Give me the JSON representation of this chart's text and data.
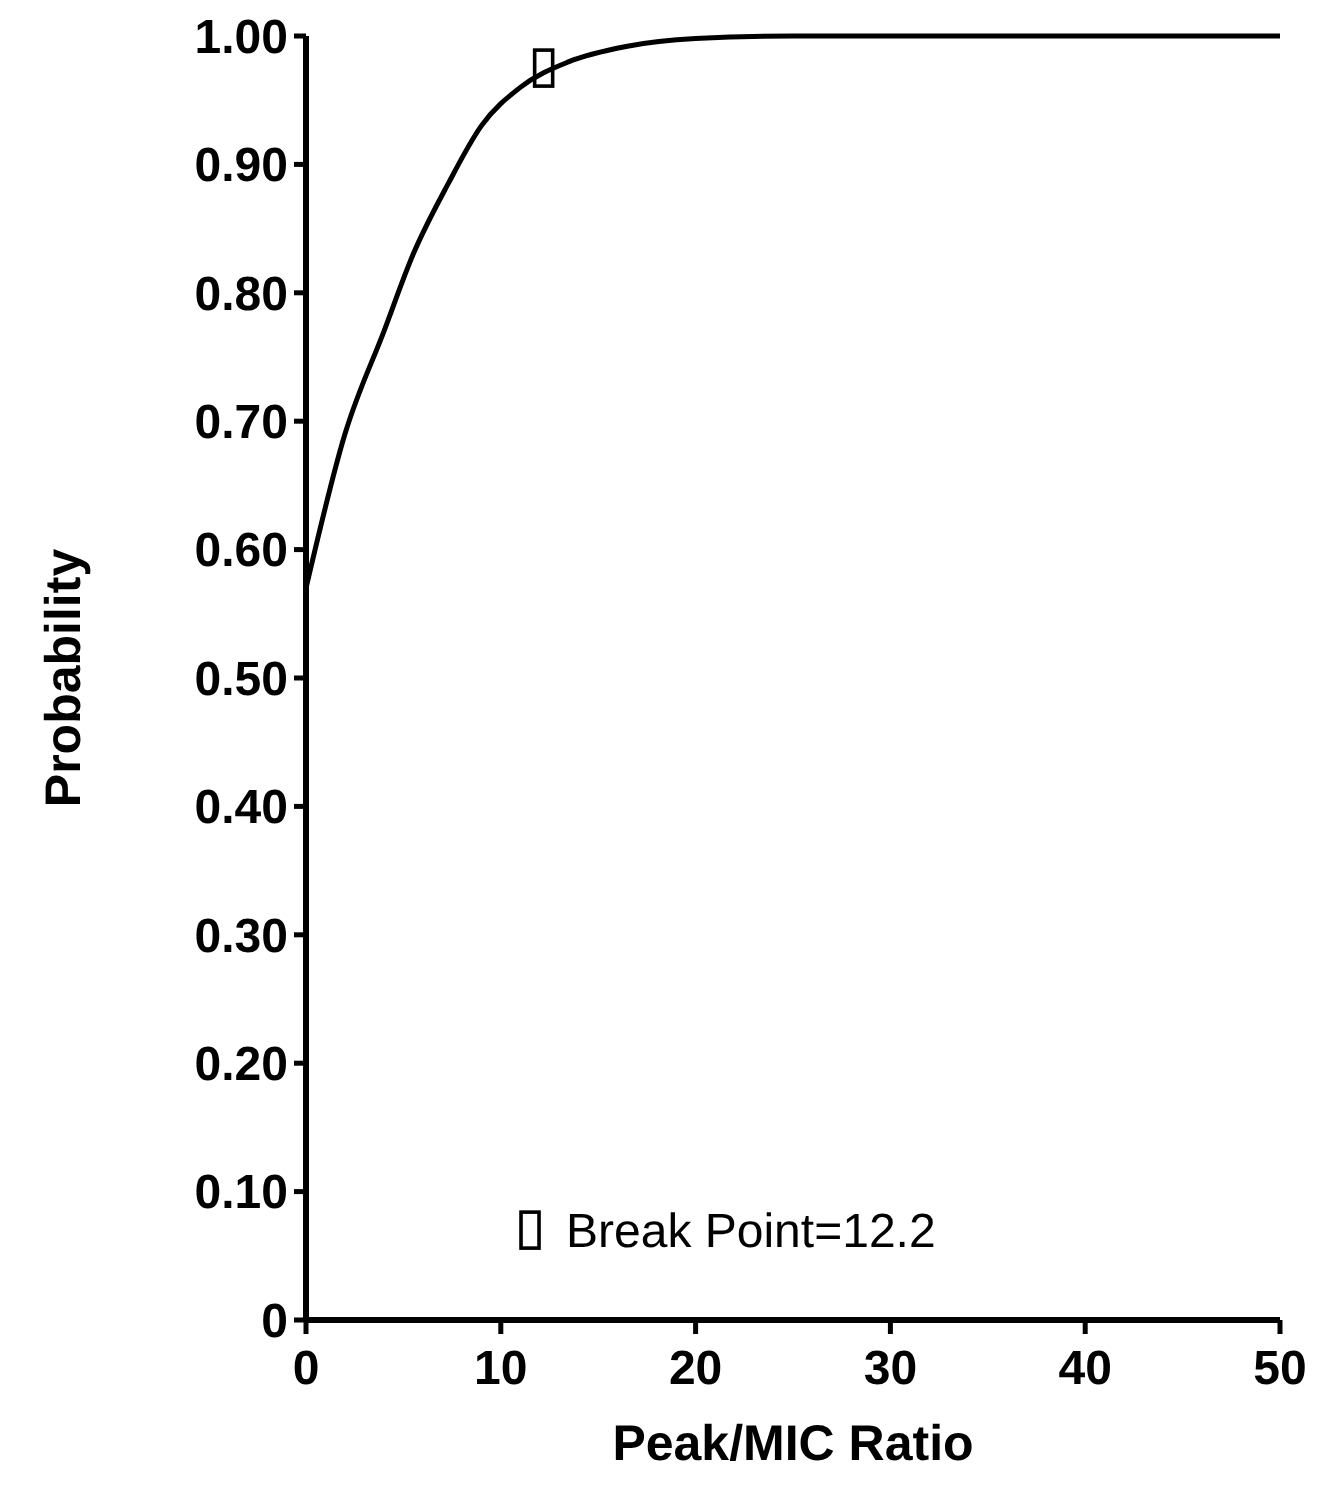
{
  "chart_data": {
    "type": "line",
    "xlabel": "Peak/MIC Ratio",
    "ylabel": "Probability",
    "xlim": [
      0,
      50
    ],
    "xticks": [
      0,
      10,
      20,
      30,
      40,
      50
    ],
    "ylim": [
      0,
      1
    ],
    "yticks": [
      0,
      {
        "value": 0.1,
        "label": "0.10"
      },
      {
        "value": 0.2,
        "label": "0.20"
      },
      {
        "value": 0.3,
        "label": "0.30"
      },
      {
        "value": 0.4,
        "label": "0.40"
      },
      {
        "value": 0.5,
        "label": "0.50"
      },
      {
        "value": 0.6,
        "label": "0.60"
      },
      {
        "value": 0.7,
        "label": "0.70"
      },
      {
        "value": 0.8,
        "label": "0.80"
      },
      {
        "value": 0.9,
        "label": "0.90"
      },
      {
        "value": 1,
        "label": "1.00"
      }
    ],
    "grid": false,
    "legend": "bottom",
    "series": [
      {
        "color": "#000000",
        "marker": "none",
        "x": [
          0,
          2,
          4,
          5.5,
          7.3,
          9,
          11,
          13.5,
          16.5,
          20,
          25,
          30,
          40,
          50
        ],
        "values": [
          0.57,
          0.69,
          0.77,
          0.83,
          0.885,
          0.93,
          0.96,
          0.98,
          0.992,
          0.998,
          1,
          1,
          1,
          1
        ]
      },
      {
        "type": "scatter",
        "name": "Break Point=12.2",
        "color": "#000000",
        "marker": "square",
        "x": [
          12.2
        ],
        "values": [
          0.975
        ]
      }
    ]
  }
}
